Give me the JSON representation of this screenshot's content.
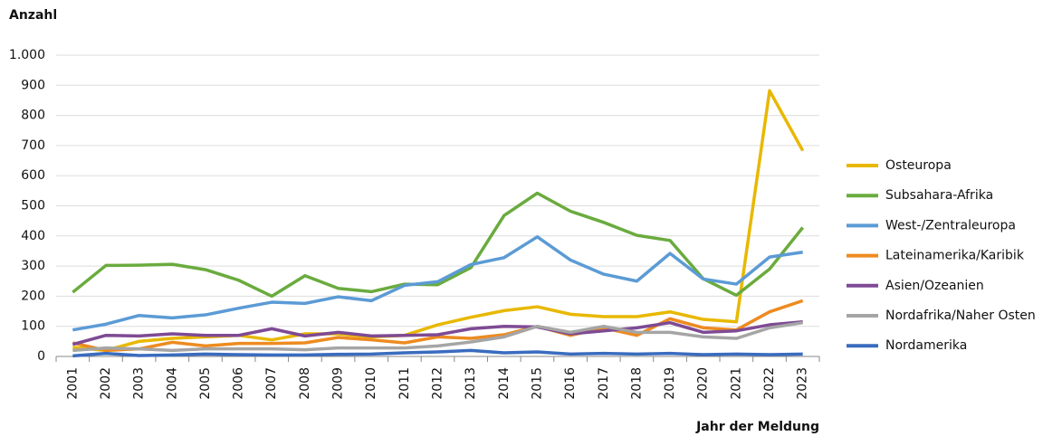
{
  "chart_data": {
    "type": "line",
    "y_label": "Anzahl",
    "x_label": "Jahr der Meldung",
    "categories": [
      "2001",
      "2002",
      "2003",
      "2004",
      "2005",
      "2006",
      "2007",
      "2008",
      "2009",
      "2010",
      "2011",
      "2012",
      "2013",
      "2014",
      "2015",
      "2016",
      "2017",
      "2018",
      "2019",
      "2020",
      "2021",
      "2022",
      "2023"
    ],
    "series": [
      {
        "name": "Osteuropa",
        "color": "#e8b800",
        "values": [
          30,
          20,
          50,
          60,
          65,
          70,
          55,
          75,
          75,
          65,
          70,
          105,
          130,
          152,
          165,
          140,
          132,
          132,
          148,
          123,
          115,
          882,
          683
        ]
      },
      {
        "name": "Subsahara-Afrika",
        "color": "#6aab3e",
        "values": [
          213,
          302,
          303,
          306,
          288,
          253,
          200,
          268,
          226,
          215,
          240,
          238,
          295,
          468,
          542,
          482,
          445,
          402,
          385,
          258,
          203,
          290,
          428
        ]
      },
      {
        "name": "West-/Zentraleuropa",
        "color": "#5b9bd5",
        "values": [
          88,
          107,
          136,
          128,
          138,
          160,
          180,
          176,
          198,
          185,
          236,
          248,
          305,
          328,
          397,
          320,
          273,
          250,
          342,
          257,
          240,
          330,
          346
        ]
      },
      {
        "name": "Lateinamerika/Karibik",
        "color": "#ed8b20",
        "values": [
          45,
          20,
          25,
          47,
          35,
          43,
          43,
          45,
          63,
          55,
          45,
          65,
          60,
          72,
          100,
          70,
          95,
          70,
          125,
          95,
          88,
          148,
          185
        ]
      },
      {
        "name": "Asien/Ozeanien",
        "color": "#7e4a94",
        "values": [
          40,
          70,
          68,
          75,
          70,
          70,
          92,
          68,
          80,
          68,
          70,
          72,
          92,
          100,
          98,
          75,
          85,
          95,
          112,
          80,
          85,
          105,
          115
        ]
      },
      {
        "name": "Nordafrika/Naher Osten",
        "color": "#a5a5a5",
        "values": [
          20,
          28,
          25,
          20,
          25,
          25,
          25,
          22,
          28,
          28,
          28,
          35,
          48,
          65,
          100,
          80,
          100,
          80,
          80,
          65,
          60,
          95,
          112
        ]
      },
      {
        "name": "Nordamerika",
        "color": "#3a6cbf",
        "values": [
          2,
          10,
          3,
          5,
          8,
          6,
          5,
          5,
          7,
          8,
          12,
          15,
          20,
          12,
          15,
          8,
          10,
          8,
          10,
          6,
          8,
          6,
          8
        ]
      }
    ],
    "ylim": [
      0,
      1000
    ],
    "yticks": [
      0,
      100,
      200,
      300,
      400,
      500,
      600,
      700,
      800,
      900,
      {
        "value": 1000,
        "label": "1.000"
      }
    ],
    "grid": true
  }
}
